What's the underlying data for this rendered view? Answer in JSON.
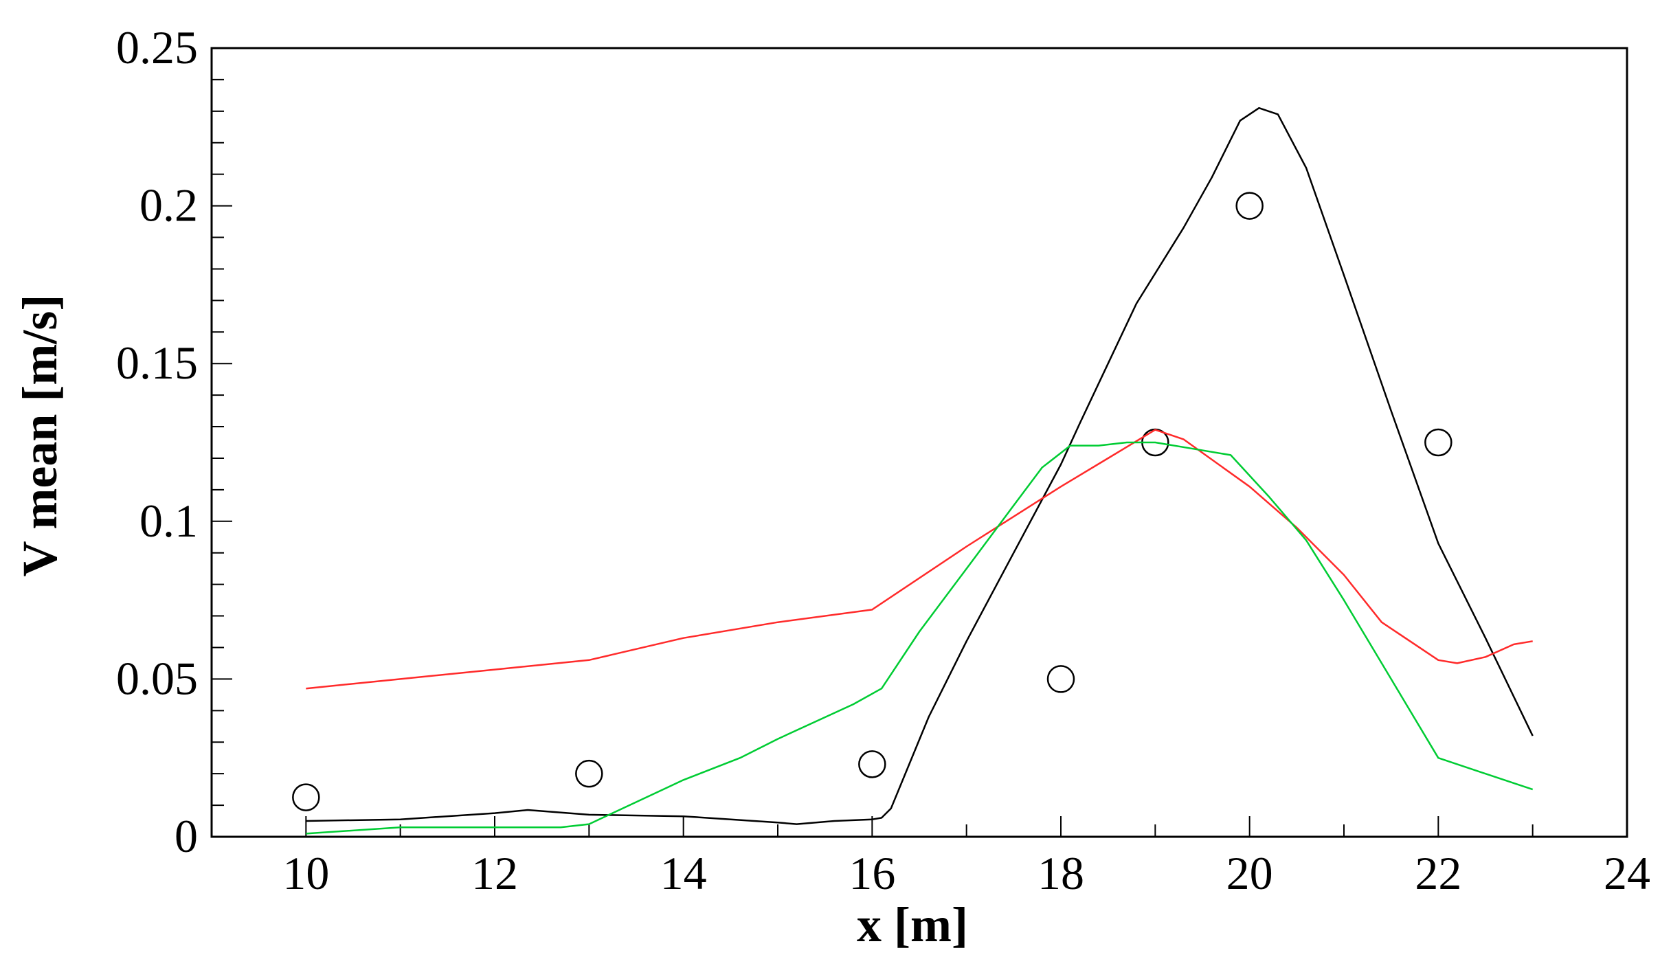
{
  "chart_data": {
    "type": "line",
    "title": "",
    "xlabel": "x [m]",
    "ylabel": "V mean [m/s]",
    "xlim": [
      9,
      24
    ],
    "ylim": [
      0,
      0.25
    ],
    "x_ticks": [
      "10",
      "12",
      "14",
      "16",
      "18",
      "20",
      "22",
      "24"
    ],
    "y_ticks": [
      "0",
      "0.05",
      "0.1",
      "0.15",
      "0.2",
      "0.25"
    ],
    "grid": false,
    "legend": "none",
    "series": [
      {
        "kind": "markers",
        "marker": "open-circle",
        "color": "#000000",
        "x": [
          10,
          13,
          16,
          18,
          19,
          20,
          22
        ],
        "y": [
          0.0125,
          0.02,
          0.023,
          0.05,
          0.125,
          0.2,
          0.125
        ]
      },
      {
        "kind": "line",
        "color": "#000000",
        "x": [
          10,
          11,
          12,
          12.35,
          13,
          14,
          15,
          15.2,
          15.6,
          16,
          16.1,
          16.2,
          16.6,
          17,
          17.5,
          18,
          18.2,
          18.5,
          18.8,
          19.3,
          19.6,
          19.9,
          20.1,
          20.3,
          20.6,
          21,
          21.5,
          22,
          22.5,
          23
        ],
        "y": [
          0.005,
          0.0055,
          0.0075,
          0.0085,
          0.007,
          0.0065,
          0.0045,
          0.004,
          0.005,
          0.0055,
          0.006,
          0.009,
          0.038,
          0.062,
          0.09,
          0.118,
          0.131,
          0.15,
          0.169,
          0.193,
          0.209,
          0.227,
          0.231,
          0.229,
          0.212,
          0.178,
          0.135,
          0.093,
          0.063,
          0.032
        ]
      },
      {
        "kind": "line",
        "color": "#ff2a2a",
        "x": [
          10,
          11,
          12,
          13,
          14,
          15,
          16,
          17,
          18,
          18.5,
          19,
          19.3,
          20,
          20.5,
          21,
          21.4,
          22,
          22.2,
          22.5,
          22.8,
          23
        ],
        "y": [
          0.047,
          0.05,
          0.053,
          0.056,
          0.063,
          0.068,
          0.072,
          0.092,
          0.111,
          0.12,
          0.129,
          0.126,
          0.111,
          0.098,
          0.083,
          0.068,
          0.056,
          0.055,
          0.057,
          0.061,
          0.062
        ]
      },
      {
        "kind": "line",
        "color": "#00cc33",
        "x": [
          10,
          11,
          12,
          12.7,
          13,
          14,
          14.6,
          15,
          15.8,
          16.1,
          16.5,
          17,
          17.5,
          17.8,
          18.1,
          18.4,
          18.7,
          19,
          19.4,
          19.8,
          20.2,
          20.6,
          21,
          21.5,
          22,
          22.5,
          23
        ],
        "y": [
          0.001,
          0.003,
          0.003,
          0.003,
          0.004,
          0.018,
          0.025,
          0.031,
          0.042,
          0.047,
          0.065,
          0.085,
          0.105,
          0.117,
          0.124,
          0.124,
          0.125,
          0.125,
          0.123,
          0.121,
          0.108,
          0.094,
          0.075,
          0.05,
          0.025,
          0.02,
          0.015
        ]
      }
    ]
  }
}
